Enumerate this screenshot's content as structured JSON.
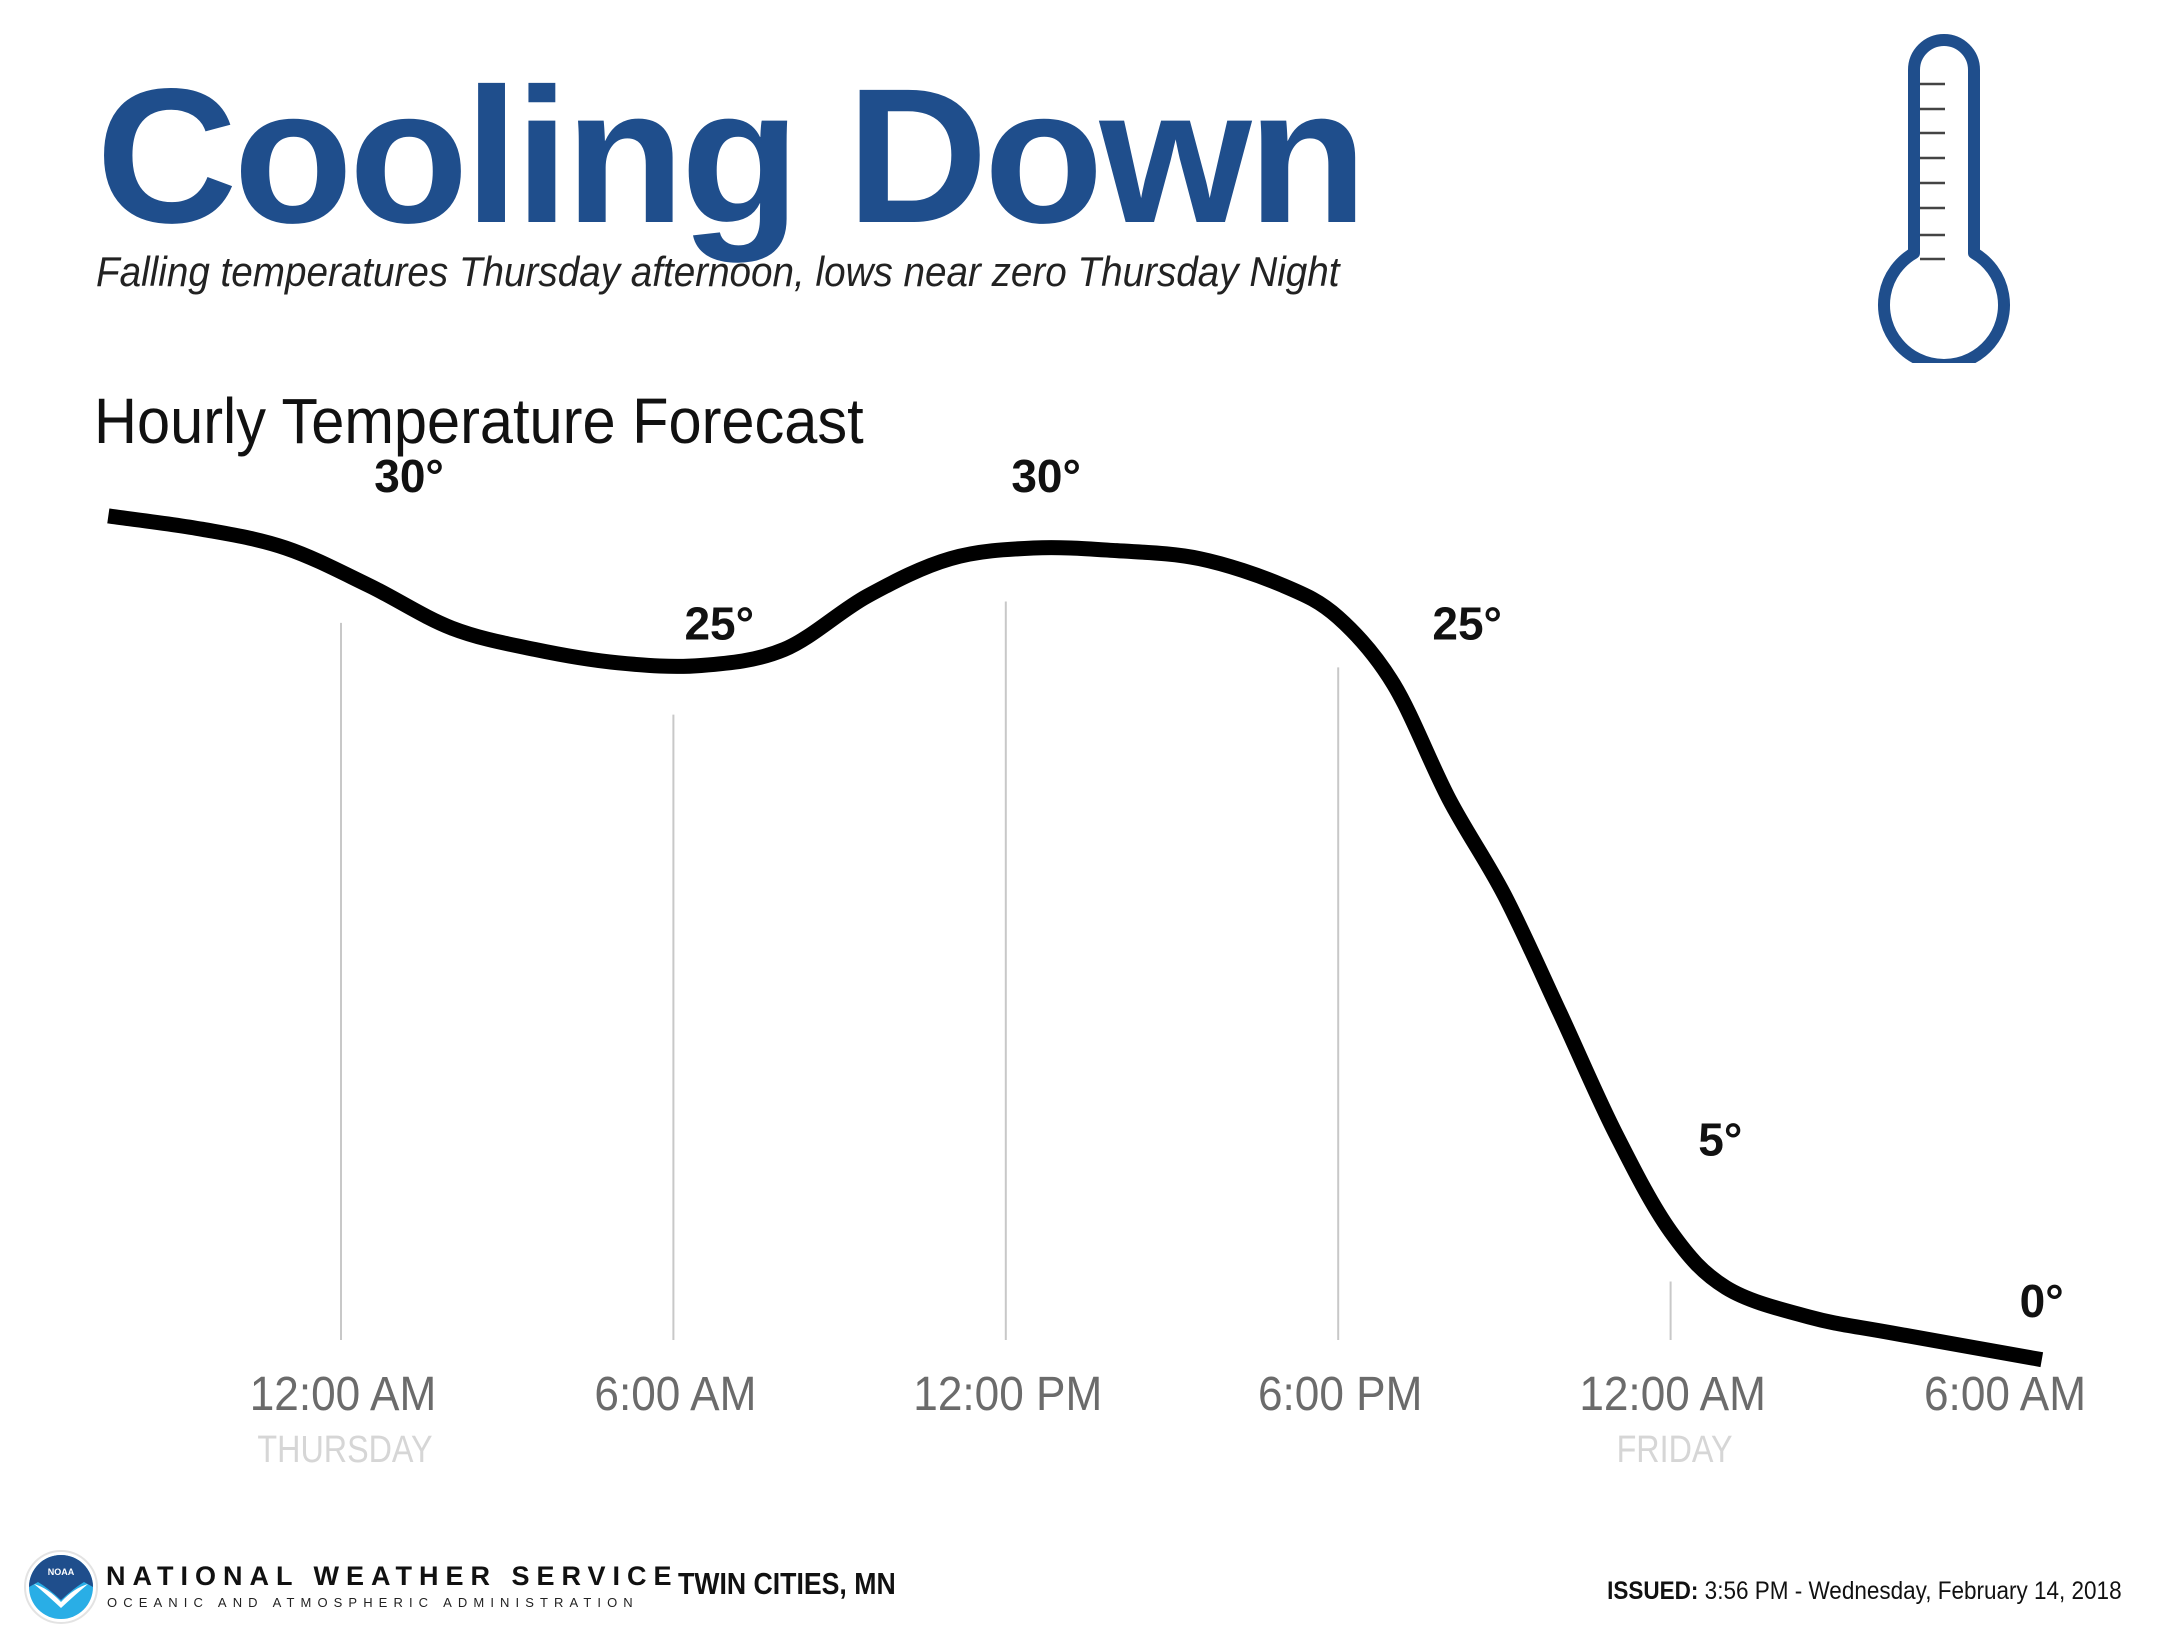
{
  "header": {
    "title": "Cooling Down",
    "subtitle": "Falling temperatures Thursday afternoon, lows near zero Thursday Night",
    "icon": "thermometer-icon"
  },
  "colors": {
    "title": "#1f4e8c",
    "line": "#000000",
    "tick_label": "#6b6b6b",
    "day_label": "#d6d6d6",
    "gridline": "#c8c8c8"
  },
  "chart_data": {
    "type": "line",
    "title": "Hourly Temperature Forecast",
    "xlabel": "",
    "ylabel": "",
    "grid": "vertical",
    "x_unit": "hours from 12:00 AM Thursday",
    "xlim": [
      -5,
      31
    ],
    "ylim": [
      -2,
      33
    ],
    "tick_labels": [
      {
        "x": 0,
        "time": "12:00 AM",
        "day": "THURSDAY"
      },
      {
        "x": 6,
        "time": "6:00 AM",
        "day": ""
      },
      {
        "x": 12,
        "time": "12:00 PM",
        "day": ""
      },
      {
        "x": 18,
        "time": "6:00 PM",
        "day": ""
      },
      {
        "x": 24,
        "time": "12:00 AM",
        "day": "FRIDAY"
      },
      {
        "x": 30,
        "time": "6:00 AM",
        "day": ""
      }
    ],
    "series": [
      {
        "name": "Hourly Temperature",
        "x": [
          -4.2,
          -2.5,
          -1,
          0.5,
          2,
          3.5,
          5,
          6.5,
          8,
          9.5,
          11,
          12.5,
          14,
          15.5,
          17,
          18,
          19,
          20,
          21,
          22,
          23,
          24,
          25,
          26.5,
          28,
          30.7
        ],
        "y": [
          31.2,
          30.7,
          30.0,
          28.6,
          27.0,
          26.2,
          25.7,
          25.6,
          26.2,
          28.2,
          29.6,
          30.0,
          29.9,
          29.6,
          28.6,
          27.4,
          24.9,
          20.6,
          17.0,
          12.6,
          8.1,
          4.4,
          2.3,
          1.2,
          0.6,
          -0.4
        ]
      }
    ],
    "annotations": [
      {
        "text": "30°",
        "x": 0.6,
        "y": 30
      },
      {
        "text": "25°",
        "x": 6.2,
        "y": 25
      },
      {
        "text": "30°",
        "x": 12.1,
        "y": 30
      },
      {
        "text": "25°",
        "x": 19.7,
        "y": 25
      },
      {
        "text": "5°",
        "x": 24.5,
        "y": 5
      },
      {
        "text": "0°",
        "x": 30.3,
        "y": 0
      }
    ]
  },
  "footer": {
    "agency": "NATIONAL WEATHER SERVICE",
    "agency_sub": "OCEANIC AND ATMOSPHERIC ADMINISTRATION",
    "logo": "noaa-logo",
    "logo_text": "NOAA",
    "location": "TWIN CITIES, MN",
    "issued_label": "ISSUED:",
    "issued_value": "3:56 PM - Wednesday, February 14, 2018"
  }
}
